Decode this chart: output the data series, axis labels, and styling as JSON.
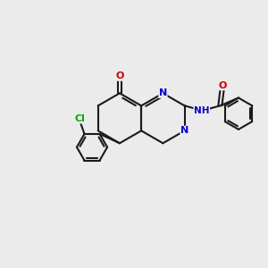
{
  "bg_color": "#ebebeb",
  "bond_color": "#1a1a1a",
  "bond_width": 1.5,
  "atom_colors": {
    "N": "#0000cc",
    "O": "#cc0000",
    "Cl": "#00aa00"
  },
  "figsize": [
    3.0,
    3.0
  ],
  "dpi": 100,
  "xlim": [
    0,
    10
  ],
  "ylim": [
    0,
    10
  ]
}
